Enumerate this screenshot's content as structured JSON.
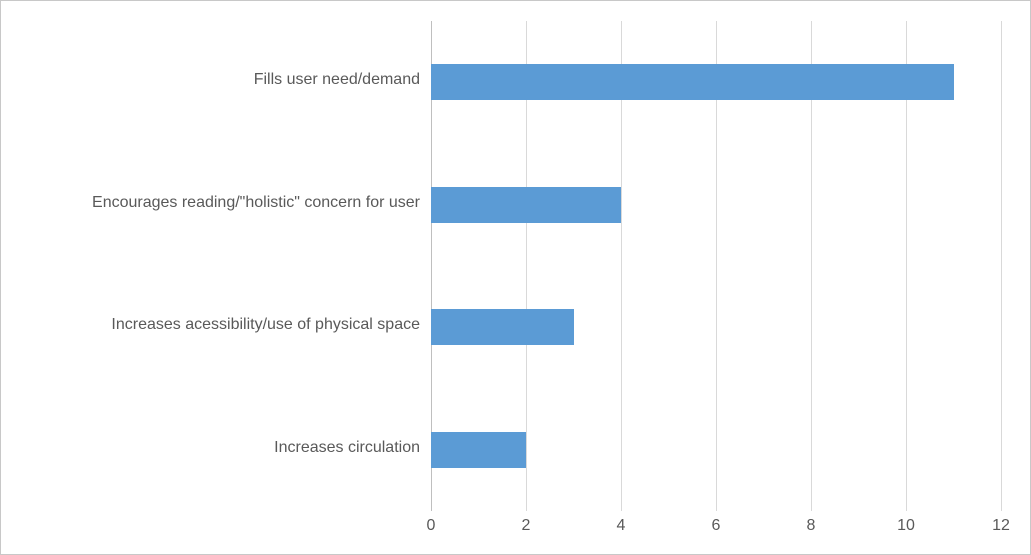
{
  "chart": {
    "type": "bar-horizontal",
    "background_color": "#ffffff",
    "border_color": "#c8c8c8",
    "bar_color": "#5b9bd5",
    "grid_color": "#d9d9d9",
    "axis_color": "#bfbfbf",
    "tick_label_color": "#595959",
    "label_fontsize_pt": 16,
    "tick_fontsize_pt": 16,
    "font_family": "Segoe UI",
    "xlim": [
      0,
      12
    ],
    "xtick_step": 2,
    "xticks": [
      0,
      2,
      4,
      6,
      8,
      10,
      12
    ],
    "bar_fraction_of_slot": 0.29,
    "categories": [
      "Fills user need/demand",
      "Encourages reading/\"holistic\" concern for user",
      "Increases acessibility/use of physical space",
      "Increases circulation"
    ],
    "values": [
      11,
      4,
      3,
      2
    ]
  }
}
